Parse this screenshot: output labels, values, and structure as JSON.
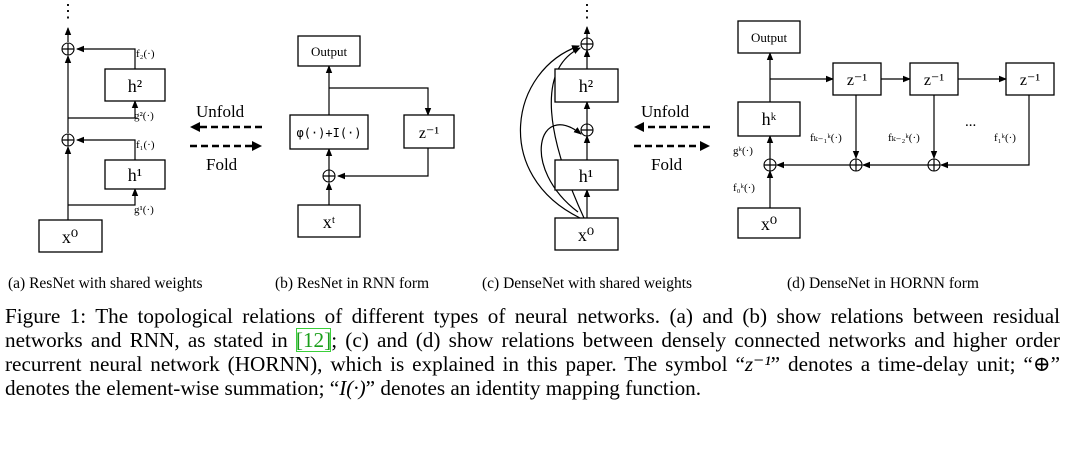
{
  "panels": {
    "a": {
      "caption": "(a) ResNet with shared weights",
      "input": "x⁰",
      "hidden1": "h¹",
      "hidden2": "h²",
      "g1": "g¹(·)",
      "f1": "f₁(·)",
      "g2": "g²(·)",
      "f2": "f₂(·)",
      "vdots": "⋮"
    },
    "b": {
      "caption": "(b) ResNet in RNN form",
      "output": "Output",
      "phi": "φ(·)+I(·)",
      "delay": "z⁻¹",
      "input": "xᵗ",
      "unfold": "Unfold",
      "fold": "Fold"
    },
    "c": {
      "caption": "(c) DenseNet with shared weights",
      "input": "x⁰",
      "hidden1": "h¹",
      "hidden2": "h²",
      "vdots": "⋮"
    },
    "d": {
      "caption": "(d) DenseNet in HORNN form",
      "output": "Output",
      "hidden": "hᵏ",
      "input": "x⁰",
      "delay1": "z⁻¹",
      "delay2": "z⁻¹",
      "delay3": "z⁻¹",
      "gk": "gᵏ(·)",
      "f0": "f₀ᵏ(·)",
      "fk1": "fₖ₋₁ᵏ(·)",
      "fk2": "fₖ₋₂ᵏ(·)",
      "f1": "f₁ᵏ(·)",
      "ellipsis": "...",
      "unfold": "Unfold",
      "fold": "Fold"
    },
    "sum_symbol": "⊕"
  },
  "caption": {
    "t1": "Figure 1: The topological relations of different types of neural networks. (a) and (b) show relations between residual networks and RNN, as stated in ",
    "ref": "[12]",
    "t2": "; (c) and (d) show relations between densely connected networks and higher order recurrent neural network (HORNN), which is explained in this paper. The symbol “",
    "sym_z": "z⁻¹",
    "t3": "” denotes a time-delay unit; “",
    "sym_sum": "⊕",
    "t4": "” denotes the element-wise summation; “",
    "sym_i": "I(·)",
    "t5": "” denotes an identity mapping function."
  }
}
